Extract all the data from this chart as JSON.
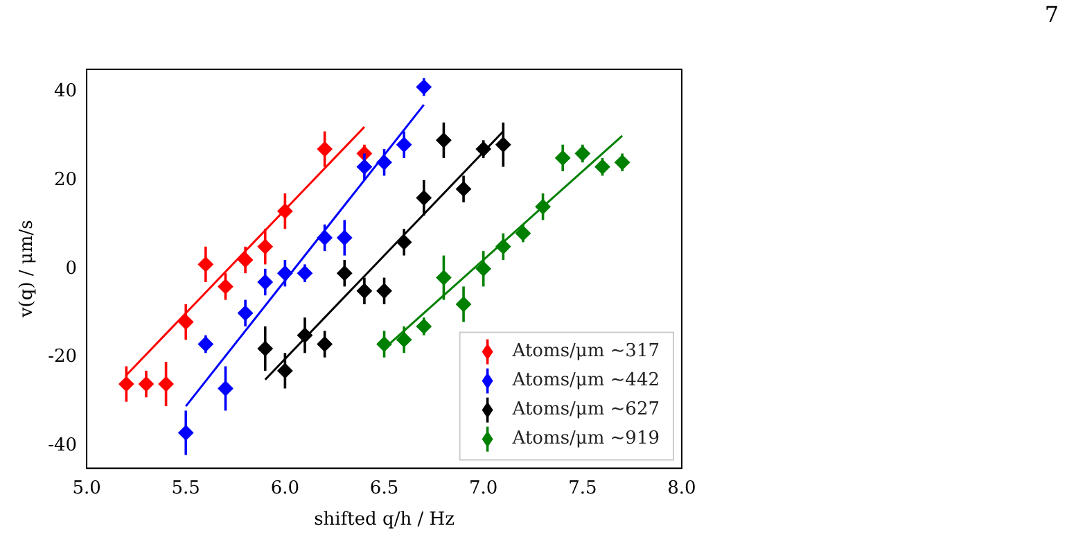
{
  "chart_data": {
    "type": "scatter",
    "xlabel": "shifted q/h / Hz",
    "ylabel": "v(q) / μm/s",
    "xlim": [
      5.0,
      8.0
    ],
    "xticks": [
      {
        "value": 5.0,
        "label": "5.0"
      },
      {
        "value": 5.5,
        "label": "5.5"
      },
      {
        "value": 6.0,
        "label": "6.0"
      },
      {
        "value": 6.5,
        "label": "6.5"
      },
      {
        "value": 7.0,
        "label": "7.0"
      },
      {
        "value": 7.5,
        "label": "7.5"
      },
      {
        "value": 8.0,
        "label": "8.0"
      }
    ],
    "ylim": [
      -45,
      45
    ],
    "yticks": [
      -40,
      -20,
      0,
      20,
      40
    ],
    "grid": false,
    "legend": "bottom right",
    "marker": "diamond",
    "annotations": [
      {
        "text": "7"
      }
    ],
    "series": [
      {
        "name": "Atoms/μm ∼317",
        "color": "#ff0000",
        "x": [
          5.2,
          5.3,
          5.4,
          5.5,
          5.6,
          5.7,
          5.8,
          5.9,
          6.0,
          6.2,
          6.4
        ],
        "values": [
          -26,
          -26,
          -26,
          -12,
          1,
          -4,
          2,
          5,
          13,
          27,
          26
        ],
        "errors": [
          4,
          3,
          5,
          4,
          4,
          3,
          3,
          4,
          4,
          4,
          2
        ]
      },
      {
        "name": "Atoms/μm ∼442",
        "color": "#0000ff",
        "x": [
          5.5,
          5.6,
          5.7,
          5.8,
          5.9,
          6.0,
          6.1,
          6.2,
          6.3,
          6.4,
          6.5,
          6.6,
          6.7
        ],
        "values": [
          -37,
          -17,
          -27,
          -10,
          -3,
          -1,
          -1,
          7,
          7,
          23,
          24,
          28,
          41
        ],
        "errors": [
          5,
          2,
          5,
          3,
          3,
          3,
          2,
          3,
          4,
          3,
          3,
          3,
          2
        ]
      },
      {
        "name": "Atoms/μm ∼627",
        "color": "#000000",
        "x": [
          5.9,
          6.0,
          6.1,
          6.2,
          6.3,
          6.4,
          6.5,
          6.6,
          6.7,
          6.8,
          6.9,
          7.0,
          7.1
        ],
        "values": [
          -18,
          -23,
          -15,
          -17,
          -1,
          -5,
          -5,
          6,
          16,
          29,
          18,
          27,
          28
        ],
        "errors": [
          5,
          4,
          4,
          3,
          3,
          3,
          3,
          3,
          4,
          4,
          3,
          2,
          5
        ]
      },
      {
        "name": "Atoms/μm ∼919",
        "color": "#008000",
        "x": [
          6.5,
          6.6,
          6.7,
          6.8,
          6.9,
          7.0,
          7.1,
          7.2,
          7.3,
          7.4,
          7.5,
          7.6,
          7.7
        ],
        "values": [
          -17,
          -16,
          -13,
          -2,
          -8,
          0,
          5,
          8,
          14,
          25,
          26,
          23,
          24
        ],
        "errors": [
          3,
          3,
          2,
          5,
          4,
          4,
          3,
          2,
          3,
          3,
          2,
          2,
          2
        ]
      },
      {
        "type": "line",
        "color": "#ff0000",
        "x": [
          5.2,
          6.4
        ],
        "values": [
          -24,
          32
        ],
        "marker": "none"
      },
      {
        "type": "line",
        "color": "#0000ff",
        "x": [
          5.5,
          6.7
        ],
        "values": [
          -31,
          37
        ],
        "marker": "none"
      },
      {
        "type": "line",
        "color": "#000000",
        "x": [
          5.9,
          7.1
        ],
        "values": [
          -25,
          31
        ],
        "marker": "none"
      },
      {
        "type": "line",
        "color": "#008000",
        "x": [
          6.5,
          7.7
        ],
        "values": [
          -18,
          30
        ],
        "marker": "none"
      }
    ]
  }
}
